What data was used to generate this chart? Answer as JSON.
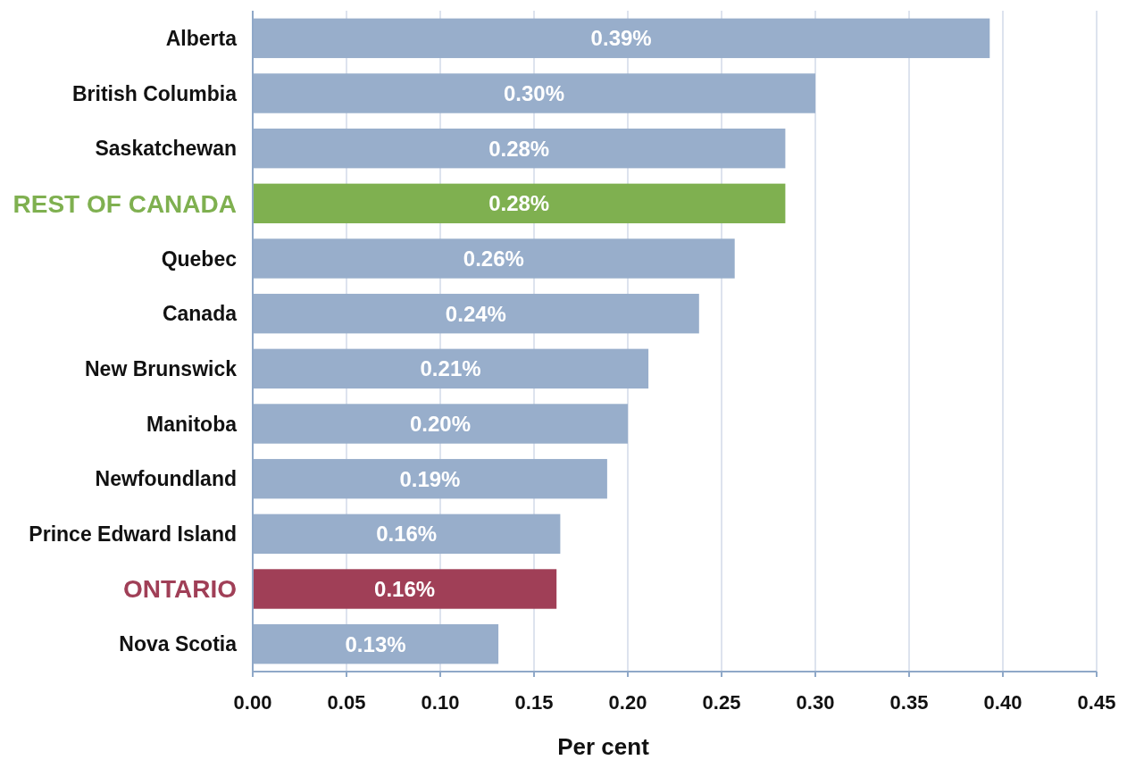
{
  "chart_data": {
    "type": "bar",
    "orientation": "horizontal",
    "xlabel": "Per cent",
    "categories": [
      "Alberta",
      "British Columbia",
      "Saskatchewan",
      "REST OF CANADA",
      "Quebec",
      "Canada",
      "New Brunswick",
      "Manitoba",
      "Newfoundland",
      "Prince Edward Island",
      "ONTARIO",
      "Nova Scotia"
    ],
    "values": [
      0.393,
      0.3,
      0.284,
      0.284,
      0.257,
      0.238,
      0.211,
      0.2,
      0.189,
      0.164,
      0.162,
      0.131
    ],
    "value_labels": [
      "0.39%",
      "0.30%",
      "0.28%",
      "0.28%",
      "0.26%",
      "0.24%",
      "0.21%",
      "0.20%",
      "0.19%",
      "0.16%",
      "0.16%",
      "0.13%"
    ],
    "color": "#98aecb",
    "colors": [
      "#98aecb",
      "#98aecb",
      "#98aecb",
      "#7fb050",
      "#98aecb",
      "#98aecb",
      "#98aecb",
      "#98aecb",
      "#98aecb",
      "#98aecb",
      "#a03f57",
      "#98aecb"
    ],
    "xlim": [
      0,
      0.45
    ],
    "xticks": [
      {
        "value": 0,
        "label": "0.00"
      },
      {
        "value": 0.05,
        "label": "0.05"
      },
      {
        "value": 0.1,
        "label": "0.10"
      },
      {
        "value": 0.15,
        "label": "0.15"
      },
      {
        "value": 0.2,
        "label": "0.20"
      },
      {
        "value": 0.25,
        "label": "0.25"
      },
      {
        "value": 0.3,
        "label": "0.30"
      },
      {
        "value": 0.35,
        "label": "0.35"
      },
      {
        "value": 0.4,
        "label": "0.40"
      },
      {
        "value": 0.45,
        "label": "0.45"
      }
    ],
    "grid": "x"
  }
}
